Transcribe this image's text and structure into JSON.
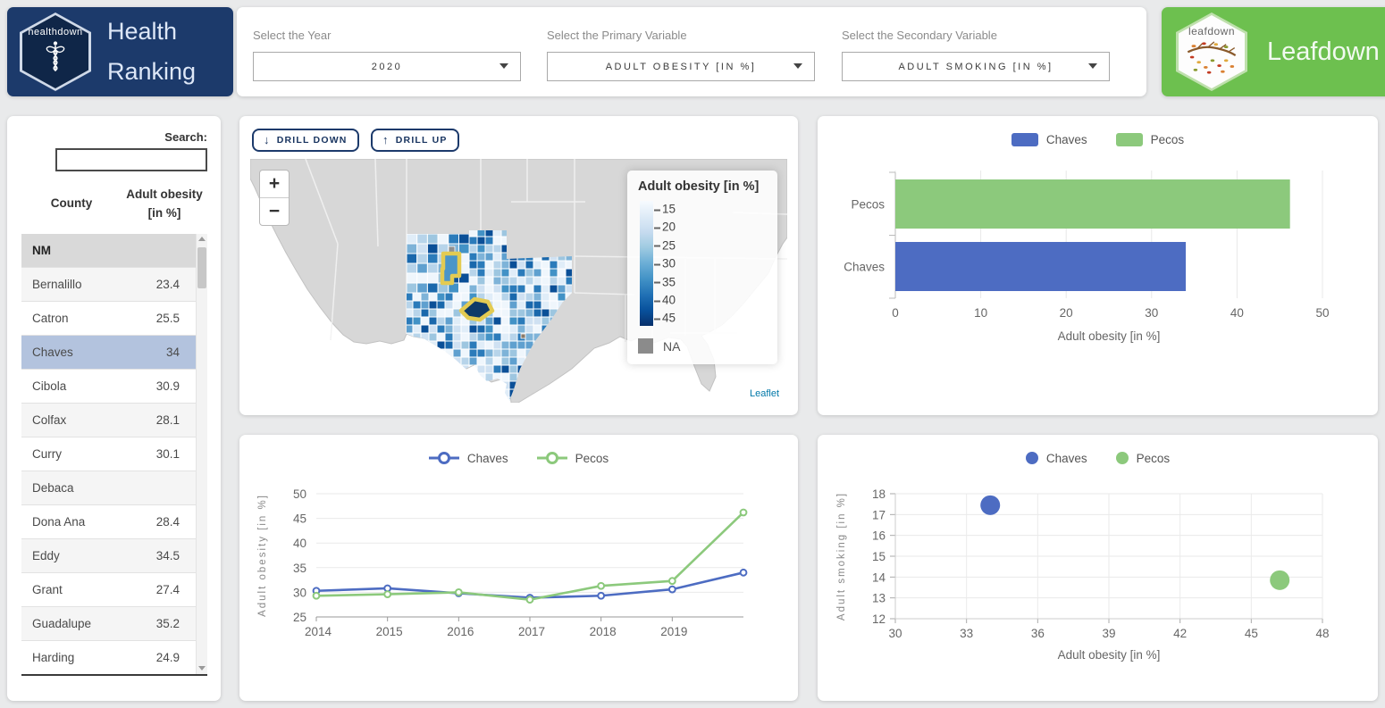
{
  "header": {
    "health": {
      "hex_label": "healthdown",
      "title_lines": [
        "Health",
        "Ranking"
      ],
      "bg": "#1c3a6b"
    },
    "controls": [
      {
        "label": "Select the Year",
        "value": "2020"
      },
      {
        "label": "Select the Primary Variable",
        "value": "ADULT OBESITY [IN %]"
      },
      {
        "label": "Select the Secondary Variable",
        "value": "ADULT SMOKING [IN %]"
      }
    ],
    "leafdown": {
      "hex_label": "leafdown",
      "title": "Leafdown",
      "bg": "#6dc04f"
    }
  },
  "sidebar": {
    "search_label": "Search:",
    "search_value": "",
    "columns": [
      "County",
      "Adult obesity [in %]"
    ],
    "group_row": "NM",
    "rows": [
      {
        "county": "Bernalillo",
        "value": "23.4"
      },
      {
        "county": "Catron",
        "value": "25.5"
      },
      {
        "county": "Chaves",
        "value": "34",
        "selected": true
      },
      {
        "county": "Cibola",
        "value": "30.9"
      },
      {
        "county": "Colfax",
        "value": "28.1"
      },
      {
        "county": "Curry",
        "value": "30.1"
      },
      {
        "county": "Debaca",
        "value": ""
      },
      {
        "county": "Dona Ana",
        "value": "28.4"
      },
      {
        "county": "Eddy",
        "value": "34.5"
      },
      {
        "county": "Grant",
        "value": "27.4"
      },
      {
        "county": "Guadalupe",
        "value": "35.2"
      },
      {
        "county": "Harding",
        "value": "24.9"
      }
    ]
  },
  "map": {
    "drill_down": "DRILL DOWN",
    "drill_up": "DRILL UP",
    "zoom_in": "+",
    "zoom_out": "−",
    "legend_title": "Adult obesity [in %]",
    "legend_ticks": [
      "15",
      "20",
      "25",
      "30",
      "35",
      "40",
      "45"
    ],
    "legend_na": "NA",
    "attribution": "Leaflet",
    "highlighted_counties": [
      "Chaves",
      "Pecos"
    ],
    "highlight_color": "#e3cb52"
  },
  "chart_data": [
    {
      "type": "bar",
      "orientation": "horizontal",
      "legend": [
        "Chaves",
        "Pecos"
      ],
      "categories": [
        "Pecos",
        "Chaves"
      ],
      "values": [
        46.2,
        34
      ],
      "colors": {
        "Chaves": "#4d6cc2",
        "Pecos": "#8cc97c"
      },
      "xlabel": "Adult obesity [in %]",
      "xlim": [
        0,
        50
      ],
      "xticks": [
        0,
        10,
        20,
        30,
        40,
        50
      ]
    },
    {
      "type": "line",
      "legend": [
        "Chaves",
        "Pecos"
      ],
      "x": [
        2014,
        2015,
        2016,
        2017,
        2018,
        2019,
        2020
      ],
      "xticks": [
        2014,
        2015,
        2016,
        2017,
        2018,
        2019
      ],
      "series": [
        {
          "name": "Chaves",
          "color": "#4d6cc2",
          "values": [
            30.3,
            30.8,
            29.8,
            28.9,
            29.3,
            30.6,
            34.0
          ]
        },
        {
          "name": "Pecos",
          "color": "#8cc97c",
          "values": [
            29.3,
            29.6,
            30.0,
            28.5,
            31.3,
            32.3,
            46.2
          ]
        }
      ],
      "ylabel": "Adult obesity [in %]",
      "ylim": [
        25,
        50
      ],
      "yticks": [
        25,
        30,
        35,
        40,
        45,
        50
      ]
    },
    {
      "type": "scatter",
      "legend": [
        "Chaves",
        "Pecos"
      ],
      "points": [
        {
          "name": "Chaves",
          "x": 34,
          "y": 17.45,
          "color": "#4d6cc2"
        },
        {
          "name": "Pecos",
          "x": 46.2,
          "y": 13.85,
          "color": "#8cc97c"
        }
      ],
      "xlabel": "Adult obesity [in %]",
      "ylabel": "Adult smoking [in %]",
      "xlim": [
        30,
        48
      ],
      "xticks": [
        30,
        33,
        36,
        39,
        42,
        45,
        48
      ],
      "ylim": [
        12,
        18
      ],
      "yticks": [
        12,
        13,
        14,
        15,
        16,
        17,
        18
      ]
    }
  ]
}
